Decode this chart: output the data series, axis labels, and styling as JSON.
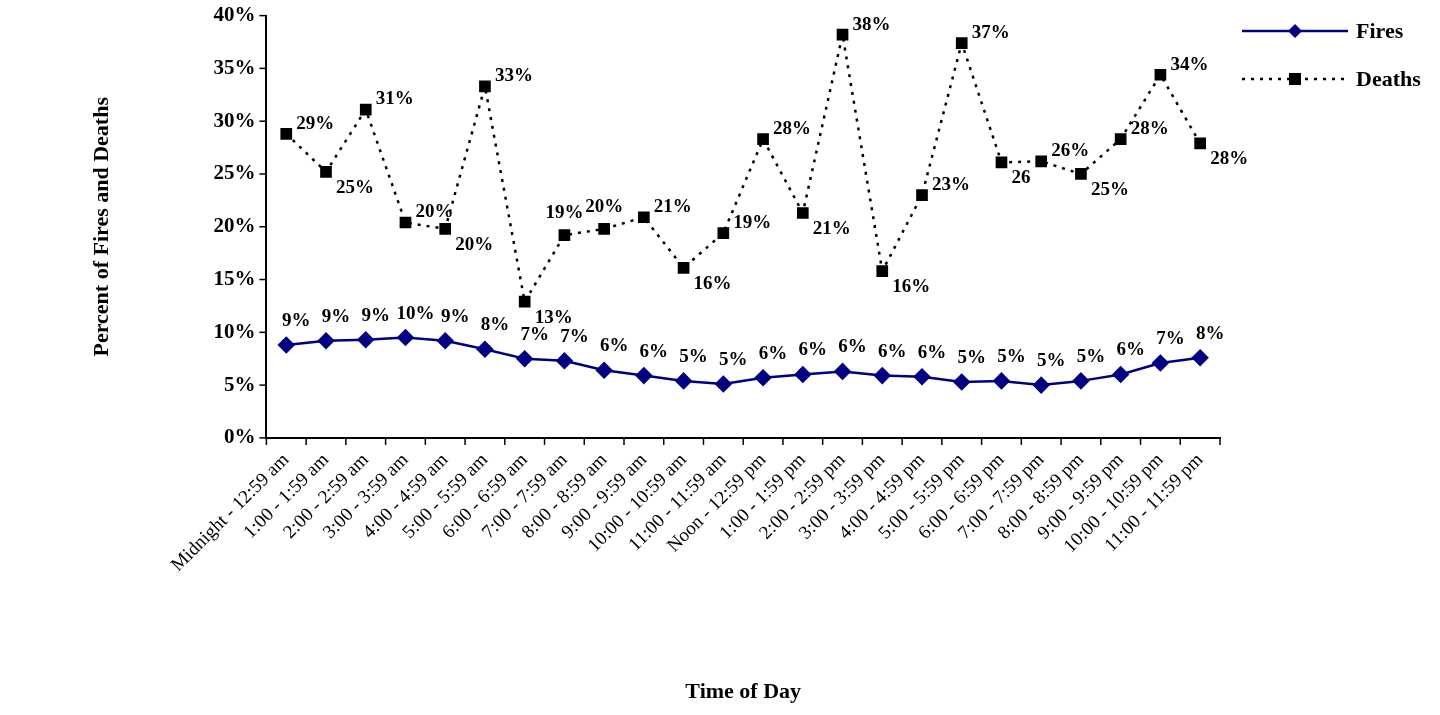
{
  "chart_data": {
    "type": "line",
    "xlabel": "Time of Day",
    "ylabel": "Percent of Fires and Deaths",
    "categories": [
      "Midnight - 12:59 am",
      "1:00 - 1:59 am",
      "2:00 - 2:59 am",
      "3:00 - 3:59 am",
      "4:00 - 4:59 am",
      "5:00 - 5:59 am",
      "6:00 - 6:59 am",
      "7:00 - 7:59 am",
      "8:00 - 8:59 am",
      "9:00 - 9:59 am",
      "10:00 - 10:59 am",
      "11:00 - 11:59 am",
      "Noon - 12:59 pm",
      "1:00 - 1:59 pm",
      "2:00 - 2:59 pm",
      "3:00 - 3:59 pm",
      "4:00 - 4:59 pm",
      "5:00 - 5:59 pm",
      "6:00 - 6:59 pm",
      "7:00 - 7:59 pm",
      "8:00 - 8:59 pm",
      "9:00 - 9:59 pm",
      "10:00 - 10:59 pm",
      "11:00 - 11:59 pm"
    ],
    "series": [
      {
        "name": "Fires",
        "color": "#000080",
        "marker": "diamond",
        "line_style": "solid",
        "values": [
          8.8,
          9.2,
          9.3,
          9.5,
          9.2,
          8.4,
          7.5,
          7.3,
          6.4,
          5.9,
          5.4,
          5.1,
          5.7,
          6.0,
          6.3,
          5.9,
          5.8,
          5.3,
          5.4,
          5.0,
          5.4,
          6.0,
          7.1,
          7.6
        ],
        "value_labels": [
          "9%",
          "9%",
          "9%",
          "10%",
          "9%",
          "8%",
          "7%",
          "7%",
          "6%",
          "6%",
          "5%",
          "5%",
          "6%",
          "6%",
          "6%",
          "6%",
          "6%",
          "5%",
          "5%",
          "5%",
          "5%",
          "6%",
          "7%",
          "8%"
        ]
      },
      {
        "name": "Deaths",
        "color": "#000000",
        "marker": "square",
        "line_style": "dotted",
        "values": [
          28.8,
          25.2,
          31.1,
          20.4,
          19.8,
          33.3,
          12.9,
          19.2,
          19.8,
          20.9,
          16.1,
          19.4,
          28.3,
          21.3,
          38.2,
          15.8,
          23.0,
          37.4,
          26.1,
          26.2,
          25.0,
          28.3,
          34.4,
          27.9
        ],
        "value_labels": [
          "29%",
          "25%",
          "31%",
          "20%",
          "20%",
          "33%",
          "13%",
          "19%",
          "20%",
          "21%",
          "16%",
          "19%",
          "28%",
          "21%",
          "38%",
          "16%",
          "23%",
          "37%",
          "26",
          "26%",
          "25%",
          "28%",
          "34%",
          "28%"
        ]
      }
    ],
    "ylim": [
      0,
      40
    ],
    "yticks": [
      {
        "value": 0,
        "label": "0%"
      },
      {
        "value": 5,
        "label": "5%"
      },
      {
        "value": 10,
        "label": "10%"
      },
      {
        "value": 15,
        "label": "15%"
      },
      {
        "value": 20,
        "label": "20%"
      },
      {
        "value": 25,
        "label": "25%"
      },
      {
        "value": 30,
        "label": "30%"
      },
      {
        "value": 35,
        "label": "35%"
      },
      {
        "value": 40,
        "label": "40%"
      }
    ],
    "grid": false,
    "legend": "top right"
  }
}
